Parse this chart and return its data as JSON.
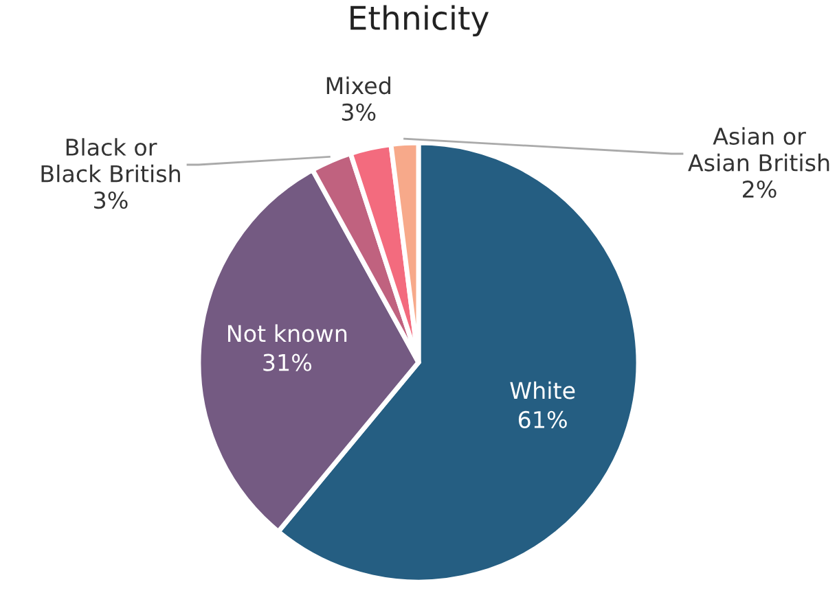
{
  "chart_data": {
    "type": "pie",
    "title": "Ethnicity",
    "categories": [
      "White",
      "Not known",
      "Black or\nBlack British",
      "Mixed",
      "Asian or\nAsian British"
    ],
    "values": [
      61,
      31,
      3,
      3,
      2
    ],
    "value_labels": [
      "61%",
      "31%",
      "3%",
      "3%",
      "2%"
    ],
    "colors": [
      "#255e82",
      "#745a82",
      "#c0627f",
      "#f36b7e",
      "#f7a98a"
    ]
  }
}
